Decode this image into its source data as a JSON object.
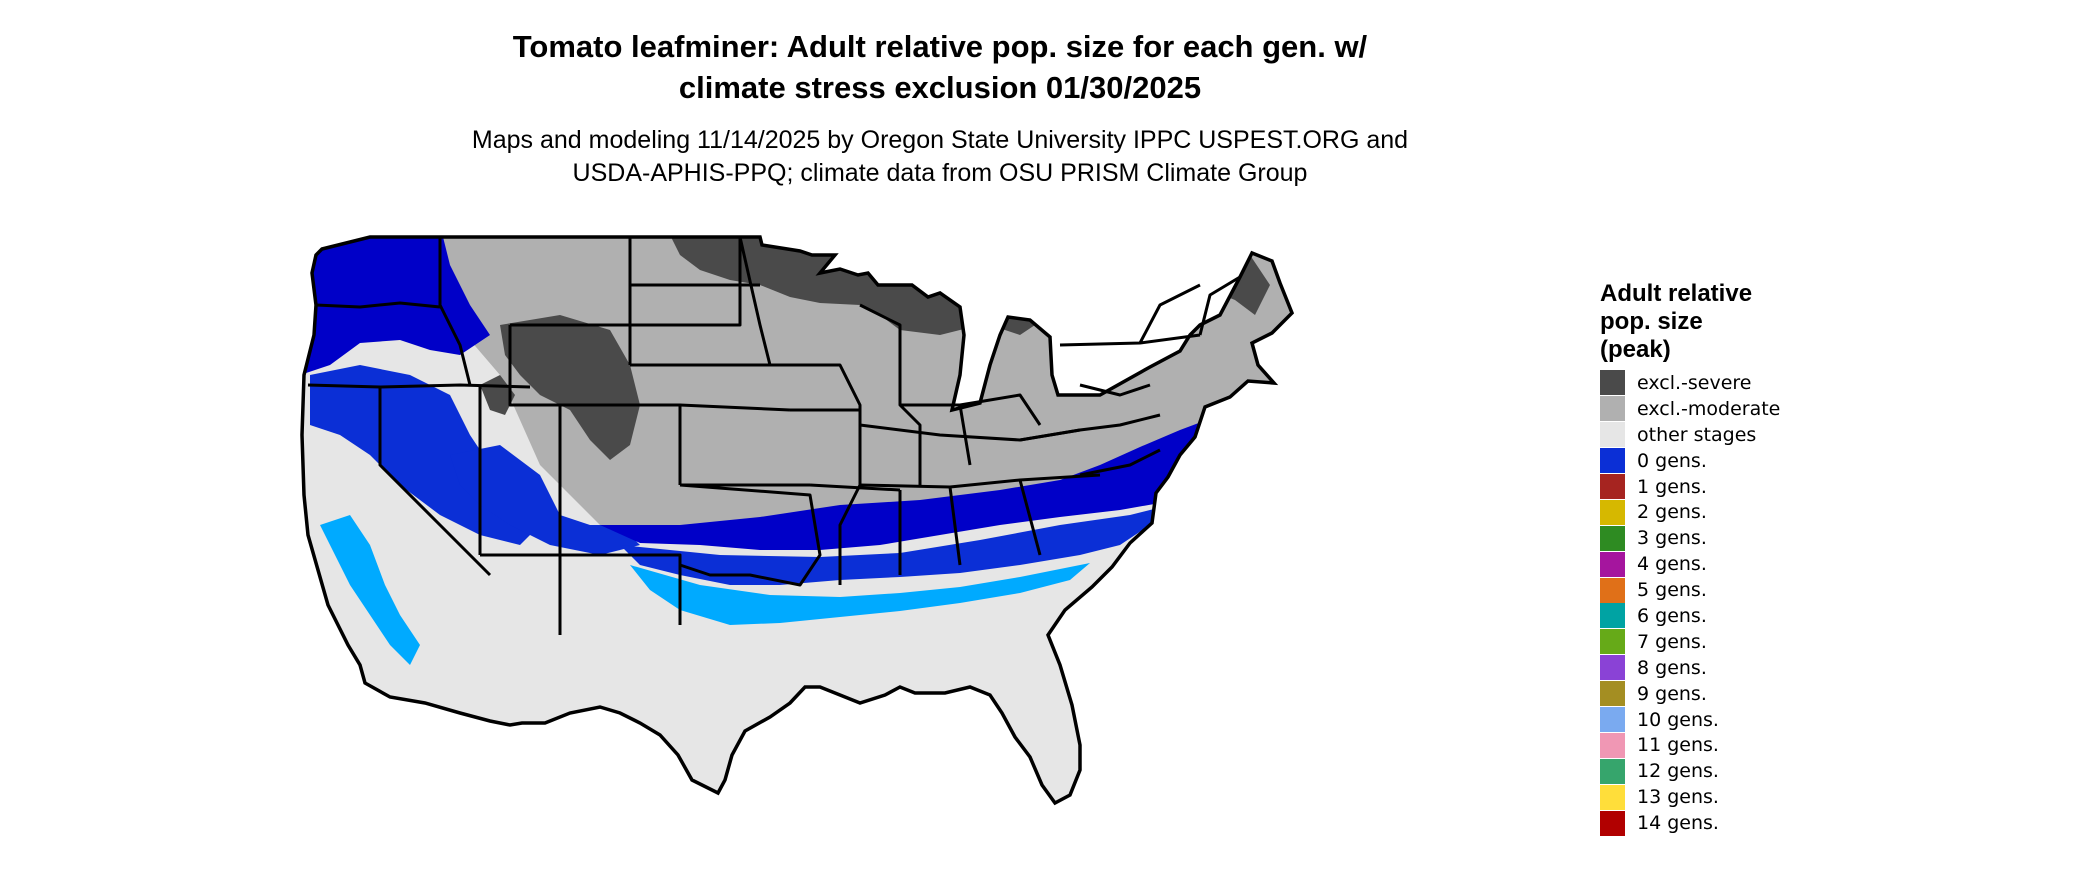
{
  "header": {
    "title_line1": "Tomato leafminer: Adult relative pop. size for each gen. w/",
    "title_line2": "climate stress exclusion 01/30/2025",
    "subtitle_line1": "Maps and modeling 11/14/2025 by Oregon State University IPPC USPEST.ORG and",
    "subtitle_line2": "USDA-APHIS-PPQ; climate data from OSU PRISM Climate Group"
  },
  "legend": {
    "title_line1": "Adult relative",
    "title_line2": "pop. size",
    "title_line3": "(peak)",
    "items": [
      {
        "label": "excl.-severe",
        "color": "#4a4a4a"
      },
      {
        "label": "excl.-moderate",
        "color": "#b0b0b0"
      },
      {
        "label": "other stages",
        "color": "#e6e6e6"
      },
      {
        "label": "0 gens.",
        "color": "#0b2fd6"
      },
      {
        "label": "1 gens.",
        "color": "#a62420"
      },
      {
        "label": "2 gens.",
        "color": "#d6b800"
      },
      {
        "label": "3 gens.",
        "color": "#2e8b22"
      },
      {
        "label": "4 gens.",
        "color": "#a5159e"
      },
      {
        "label": "5 gens.",
        "color": "#e07018"
      },
      {
        "label": "6 gens.",
        "color": "#00a3a3"
      },
      {
        "label": "7 gens.",
        "color": "#66aa18"
      },
      {
        "label": "8 gens.",
        "color": "#8a42d6"
      },
      {
        "label": "9 gens.",
        "color": "#a48e22"
      },
      {
        "label": "10 gens.",
        "color": "#7aaaf0"
      },
      {
        "label": "11 gens.",
        "color": "#f097b4"
      },
      {
        "label": "12 gens.",
        "color": "#36a56c"
      },
      {
        "label": "13 gens.",
        "color": "#ffde3a"
      },
      {
        "label": "14 gens.",
        "color": "#b10000"
      }
    ]
  },
  "map": {
    "colors": {
      "excl_severe": "#4a4a4a",
      "excl_moderate": "#b0b0b0",
      "other_stages": "#e6e6e6",
      "zero_gens_dark": "#0000c8",
      "zero_gens": "#0b2fd6",
      "light_blue": "#00aaff",
      "border": "#000000"
    }
  }
}
